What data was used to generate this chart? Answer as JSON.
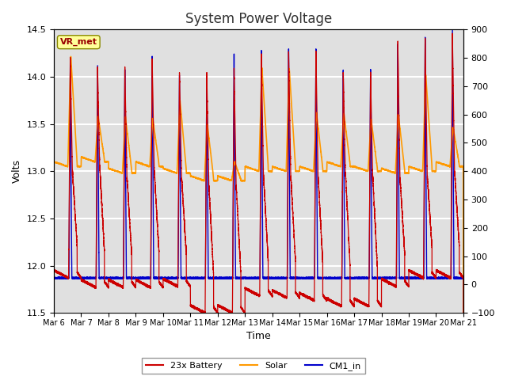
{
  "title": "System Power Voltage",
  "xlabel": "Time",
  "ylabel_left": "Volts",
  "ylim_left": [
    11.5,
    14.5
  ],
  "ylim_right": [
    -100,
    900
  ],
  "yticks_left": [
    11.5,
    12.0,
    12.5,
    13.0,
    13.5,
    14.0,
    14.5
  ],
  "yticks_right": [
    -100,
    0,
    100,
    200,
    300,
    400,
    500,
    600,
    700,
    800,
    900
  ],
  "xtick_labels": [
    "Mar 6",
    "Mar 7",
    "Mar 8",
    "Mar 9",
    "Mar 10",
    "Mar 11",
    "Mar 12",
    "Mar 13",
    "Mar 14",
    "Mar 15",
    "Mar 16",
    "Mar 17",
    "Mar 18",
    "Mar 19",
    "Mar 20",
    "Mar 21"
  ],
  "color_battery": "#cc0000",
  "color_solar": "#ff9900",
  "color_cm1": "#0000cc",
  "label_battery": "23x Battery",
  "label_solar": "Solar",
  "label_cm1": "CM1_in",
  "vr_met_label": "VR_met",
  "vr_met_bg": "#ffff99",
  "vr_met_text_color": "#990000",
  "background_color": "#e0e0e0",
  "grid_color": "#ffffff",
  "n_days": 15,
  "title_fontsize": 12,
  "label_fontsize": 9,
  "tick_fontsize": 8
}
